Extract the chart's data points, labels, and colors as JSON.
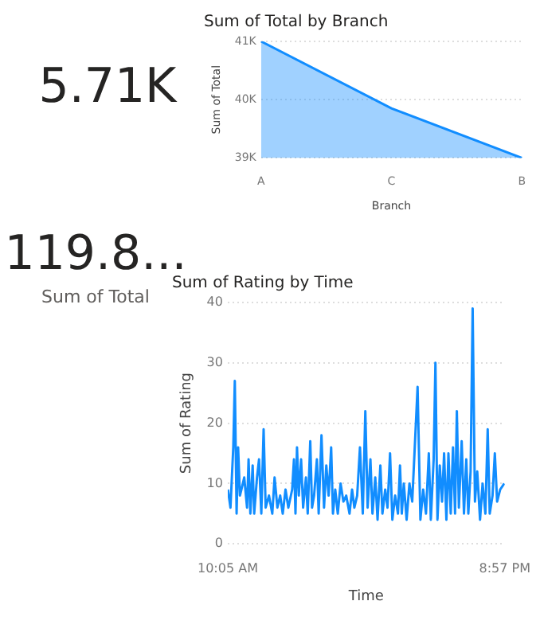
{
  "chart_data": [
    {
      "type": "other",
      "annotations": [
        "5.71K"
      ]
    },
    {
      "type": "area",
      "title": "Sum of Total by Branch",
      "xlabel": "Branch",
      "ylabel": "Sum of Total",
      "categories": [
        "A",
        "C",
        "B"
      ],
      "values": [
        41000,
        39850,
        39000
      ],
      "color": "#118dff",
      "ylim": [
        39000,
        41000
      ],
      "yticks": [
        {
          "value": 39000,
          "label": "39K"
        },
        {
          "value": 40000,
          "label": "40K"
        },
        {
          "value": 41000,
          "label": "41K"
        }
      ],
      "grid": "y"
    },
    {
      "type": "other",
      "annotations": [
        "119.8...",
        "Sum of Total"
      ]
    },
    {
      "type": "line",
      "title": "Sum of Rating by Time",
      "xlabel": "Time",
      "ylabel": "Sum of Rating",
      "color": "#118dff",
      "grid": "y",
      "xlim": [
        10.0833,
        20.95
      ],
      "xticks": [
        {
          "value": 10.0833,
          "label": "10:05 AM"
        },
        {
          "value": 20.95,
          "label": "8:57 PM"
        }
      ],
      "ylim": [
        0,
        40
      ],
      "yticks": [
        0,
        10,
        20,
        30,
        40
      ],
      "x": [
        10.09,
        10.19,
        10.3,
        10.36,
        10.43,
        10.49,
        10.56,
        10.62,
        10.73,
        10.84,
        10.9,
        10.97,
        11.06,
        11.12,
        11.23,
        11.31,
        11.4,
        11.49,
        11.57,
        11.7,
        11.83,
        11.92,
        12.03,
        12.14,
        12.24,
        12.35,
        12.46,
        12.61,
        12.68,
        12.74,
        12.8,
        12.87,
        12.96,
        13.04,
        13.15,
        13.22,
        13.32,
        13.39,
        13.47,
        13.58,
        13.65,
        13.76,
        13.86,
        13.95,
        14.04,
        14.14,
        14.21,
        14.3,
        14.4,
        14.51,
        14.62,
        14.73,
        14.86,
        14.96,
        15.05,
        15.16,
        15.27,
        15.38,
        15.48,
        15.57,
        15.68,
        15.76,
        15.87,
        15.96,
        16.07,
        16.15,
        16.26,
        16.35,
        16.45,
        16.54,
        16.65,
        16.76,
        16.84,
        16.91,
        16.99,
        17.1,
        17.21,
        17.32,
        17.43,
        17.53,
        17.64,
        17.75,
        17.86,
        17.97,
        18.05,
        18.16,
        18.23,
        18.31,
        18.4,
        18.49,
        18.57,
        18.66,
        18.74,
        18.83,
        18.92,
        19.0,
        19.07,
        19.15,
        19.26,
        19.35,
        19.44,
        19.52,
        19.61,
        19.69,
        19.78,
        19.87,
        19.98,
        20.08,
        20.19,
        20.28,
        20.36,
        20.47,
        20.56,
        20.65,
        20.77,
        20.93
      ],
      "values": [
        9,
        6,
        16,
        27,
        5,
        16,
        8,
        9,
        11,
        6,
        14,
        5,
        13,
        5,
        11,
        14,
        5,
        19,
        6,
        8,
        5,
        11,
        6,
        8,
        5,
        9,
        6,
        9,
        14,
        5,
        16,
        8,
        14,
        6,
        11,
        5,
        17,
        6,
        8,
        14,
        5,
        18,
        6,
        13,
        8,
        16,
        5,
        9,
        5,
        10,
        7,
        8,
        5,
        9,
        6,
        8,
        16,
        5,
        22,
        6,
        14,
        5,
        11,
        4,
        13,
        5,
        9,
        6,
        15,
        4,
        8,
        5,
        13,
        5,
        10,
        4,
        10,
        7,
        17,
        26,
        4,
        9,
        5,
        15,
        4,
        14,
        30,
        4,
        13,
        7,
        15,
        4,
        15,
        5,
        16,
        5,
        22,
        6,
        17,
        5,
        14,
        5,
        12,
        39,
        7,
        12,
        4,
        10,
        5,
        19,
        5,
        8,
        15,
        7,
        9,
        10
      ]
    }
  ]
}
